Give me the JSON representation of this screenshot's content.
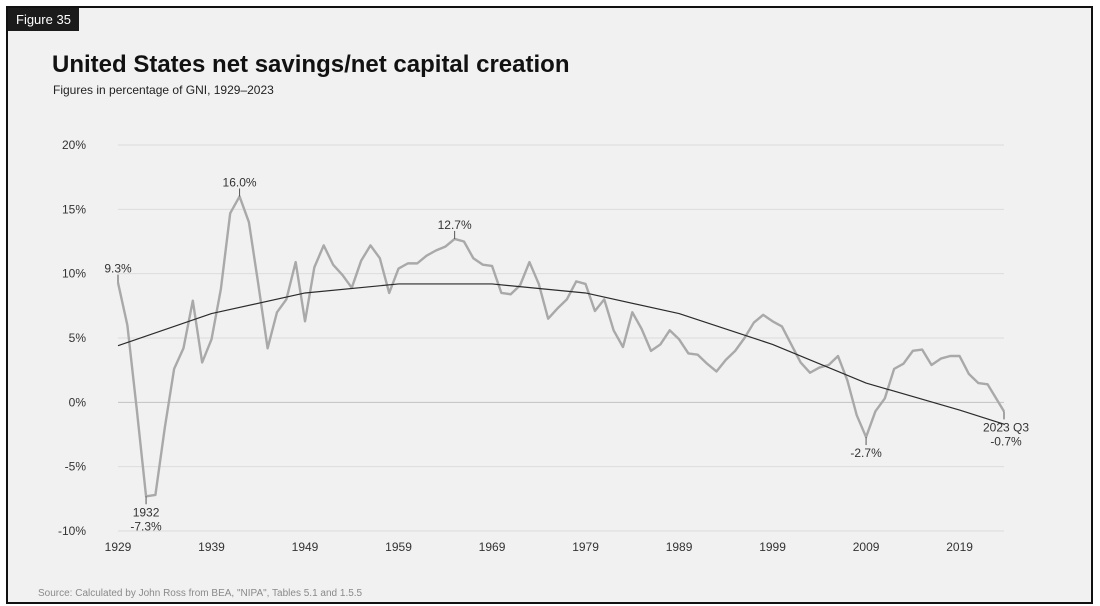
{
  "figure_tag": "Figure 35",
  "source": "Source: Calculated by John Ross from BEA, \"NIPA\", Tables 5.1 and 1.5.5",
  "chart_data": {
    "type": "line",
    "title": "United States net savings/net capital creation",
    "subtitle": "Figures in percentage of GNI, 1929–2023",
    "xlabel": "",
    "ylabel": "",
    "xlim": [
      1929,
      2023.75
    ],
    "ylim": [
      -10,
      20
    ],
    "y_ticks": [
      20,
      15,
      10,
      5,
      0,
      -5,
      -10
    ],
    "y_tick_labels": [
      "20%",
      "15%",
      "10%",
      "5%",
      "0%",
      "-5%",
      "-10%"
    ],
    "x_ticks": [
      1929,
      1939,
      1949,
      1959,
      1969,
      1979,
      1989,
      1999,
      2009,
      2019
    ],
    "x_tick_labels": [
      "1929",
      "1939",
      "1949",
      "1959",
      "1969",
      "1979",
      "1989",
      "1999",
      "2009",
      "2019"
    ],
    "grid": "horizontal",
    "series": [
      {
        "name": "",
        "color": "#a9a9a9",
        "x": [
          1929,
          1930,
          1931,
          1932,
          1933,
          1934,
          1935,
          1936,
          1937,
          1938,
          1939,
          1940,
          1941,
          1942,
          1943,
          1944,
          1945,
          1946,
          1947,
          1948,
          1949,
          1950,
          1951,
          1952,
          1953,
          1954,
          1955,
          1956,
          1957,
          1958,
          1959,
          1960,
          1961,
          1962,
          1963,
          1964,
          1965,
          1966,
          1967,
          1968,
          1969,
          1970,
          1971,
          1972,
          1973,
          1974,
          1975,
          1976,
          1977,
          1978,
          1979,
          1980,
          1981,
          1982,
          1983,
          1984,
          1985,
          1986,
          1987,
          1988,
          1989,
          1990,
          1991,
          1992,
          1993,
          1994,
          1995,
          1996,
          1997,
          1998,
          1999,
          2000,
          2001,
          2002,
          2003,
          2004,
          2005,
          2006,
          2007,
          2008,
          2009,
          2010,
          2011,
          2012,
          2013,
          2014,
          2015,
          2016,
          2017,
          2018,
          2019,
          2020,
          2021,
          2022,
          2023.75
        ],
        "y": [
          9.3,
          6.0,
          -0.5,
          -7.3,
          -7.2,
          -2.0,
          2.6,
          4.2,
          7.9,
          3.1,
          4.9,
          8.8,
          14.7,
          16.0,
          14.0,
          9.2,
          4.2,
          7.0,
          8.0,
          10.9,
          6.3,
          10.5,
          12.2,
          10.7,
          9.9,
          8.9,
          11.0,
          12.2,
          11.2,
          8.5,
          10.4,
          10.8,
          10.8,
          11.4,
          11.8,
          12.1,
          12.7,
          12.5,
          11.2,
          10.7,
          10.6,
          8.5,
          8.4,
          9.1,
          10.9,
          9.2,
          6.5,
          7.3,
          8.0,
          9.4,
          9.2,
          7.1,
          8.0,
          5.6,
          4.3,
          7.0,
          5.7,
          4.0,
          4.5,
          5.6,
          4.9,
          3.8,
          3.7,
          3.0,
          2.4,
          3.3,
          4.0,
          5.0,
          6.2,
          6.8,
          6.3,
          5.9,
          4.5,
          3.1,
          2.3,
          2.7,
          2.9,
          3.6,
          1.7,
          -1.0,
          -2.7,
          -0.7,
          0.3,
          2.6,
          3.0,
          4.0,
          4.1,
          2.9,
          3.4,
          3.6,
          3.6,
          2.2,
          1.5,
          1.4,
          -0.7
        ]
      },
      {
        "name": "",
        "color": "#2b2b2b",
        "x": [
          1929,
          1939,
          1949,
          1959,
          1969,
          1979,
          1989,
          1999,
          2009,
          2019,
          2023.75
        ],
        "y": [
          4.4,
          6.9,
          8.5,
          9.2,
          9.2,
          8.5,
          6.9,
          4.5,
          1.5,
          -0.6,
          -1.7
        ]
      }
    ],
    "annotations": [
      {
        "x": 1929,
        "y": 9.3,
        "lines": [
          "9.3%"
        ]
      },
      {
        "x": 1932,
        "y": -7.3,
        "lines": [
          "1932",
          "-7.3%"
        ]
      },
      {
        "x": 1942,
        "y": 16.0,
        "lines": [
          "16.0%"
        ]
      },
      {
        "x": 1965,
        "y": 12.7,
        "lines": [
          "12.7%"
        ]
      },
      {
        "x": 2009,
        "y": -2.7,
        "lines": [
          "-2.7%"
        ]
      },
      {
        "x": 2023.75,
        "y": -0.7,
        "lines": [
          "2023 Q3",
          "-0.7%"
        ]
      }
    ]
  }
}
